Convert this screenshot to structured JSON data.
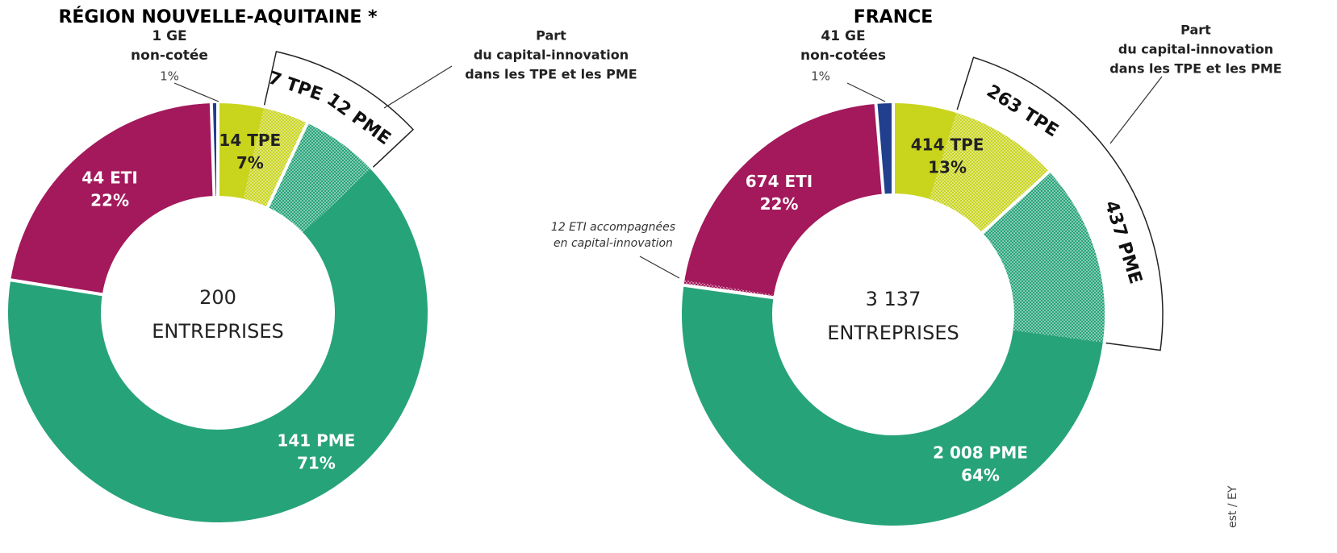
{
  "chart_data": [
    {
      "type": "donut",
      "title": "RÉGION NOUVELLE-AQUITAINE *",
      "total": 200,
      "center_text": "ENTREPRISES",
      "values": [
        14,
        141,
        44,
        1
      ],
      "value_labels": [
        "14 TPE",
        "141 PME",
        "44 ETI",
        "1 GE"
      ],
      "percents": [
        7,
        71,
        22,
        1
      ],
      "percent_labels": [
        "7%",
        "71%",
        "22%",
        "1%"
      ],
      "colors": [
        "#c9d41d",
        "#27a37a",
        "#a3195b",
        "#213f8d"
      ],
      "accompanied": [
        7,
        12,
        null,
        null
      ],
      "accompanied_labels": [
        "7 TPE",
        "12 PME",
        null,
        null
      ],
      "ge_note": "non-cotée",
      "bracket_note": [
        "Part",
        "du capital-innovation",
        "dans les TPE et les PME"
      ]
    },
    {
      "type": "donut",
      "title": "FRANCE",
      "total": 3137,
      "total_label": "3 137",
      "center_text": "ENTREPRISES",
      "values": [
        414,
        2008,
        674,
        41
      ],
      "value_labels": [
        "414 TPE",
        "2 008 PME",
        "674 ETI",
        "41 GE"
      ],
      "percents": [
        13,
        64,
        22,
        1
      ],
      "percent_labels": [
        "13%",
        "64%",
        "22%",
        "1%"
      ],
      "colors": [
        "#c9d41d",
        "#27a37a",
        "#a3195b",
        "#213f8d"
      ],
      "accompanied": [
        263,
        437,
        12,
        null
      ],
      "accompanied_labels": [
        "263 TPE",
        "437 PME",
        null,
        null
      ],
      "eti_note": [
        "12 ETI accompagnées",
        "en capital-innovation"
      ],
      "ge_note": "non-cotées",
      "bracket_note": [
        "Part",
        "du capital-innovation",
        "dans les TPE et les PME"
      ],
      "source": "est / EY"
    }
  ]
}
